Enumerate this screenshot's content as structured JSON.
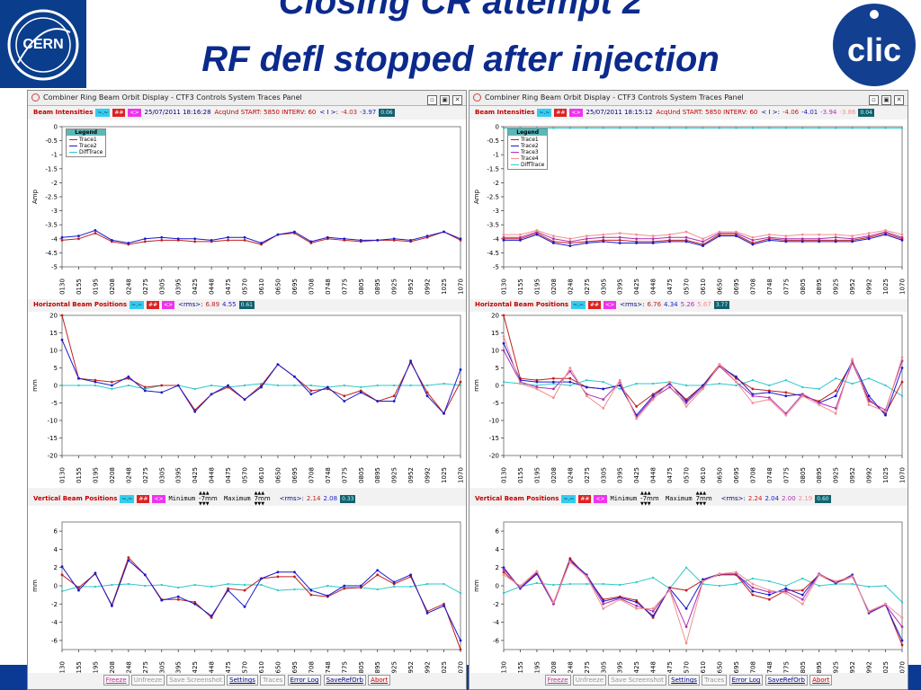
{
  "slide": {
    "title_line1": "Closing CR attempt 2",
    "title_line2": "RF defl stopped after injection",
    "logo_left_text": "CERN",
    "logo_right_text": "clic"
  },
  "window": {
    "title": "Combiner Ring Beam Orbit Display - CTF3 Controls System    Traces Panel",
    "buttons": [
      "▫",
      "▣",
      "✕"
    ]
  },
  "controls": {
    "cyan": "~.~",
    "red": "##",
    "mag": "<>",
    "up_arrows": "▲▲▲",
    "down_arrows": "▼▼▼",
    "minimum_label": "Minimum",
    "maximum_label": "Maximum",
    "unit_mm": "mm"
  },
  "footer": {
    "buttons": [
      "Freeze",
      "Unfreeze",
      "Save Screenshot",
      "Settings",
      "Traces",
      "Error Log",
      "SaveRefOrb",
      "Abort"
    ]
  },
  "colors": {
    "trace1": "#c02020",
    "trace2": "#1a1acc",
    "trace3": "#b030b0",
    "trace4": "#f09090",
    "diff": "#30c8c8",
    "title": "#0b2a8c"
  },
  "bpm_labels": [
    "0130",
    "0155",
    "0195",
    "0208",
    "0248",
    "0275",
    "0305",
    "0395",
    "0425",
    "0448",
    "0475",
    "0570",
    "0610",
    "0650",
    "0695",
    "0708",
    "0748",
    "0775",
    "0805",
    "0895",
    "0925",
    "0952",
    "0992",
    "1025",
    "1070"
  ],
  "panels": [
    {
      "id": "left",
      "intensity_header": {
        "label": "Beam Intensities",
        "date": "25/07/2011 18:16:28",
        "acq": "AcqUnd START: 5850 INTERV: 60",
        "rms_prefix": "< I >:",
        "vals": [
          "-4.03",
          "-3.97"
        ],
        "badge": "0.06"
      },
      "horizontal_header": {
        "label": "Horizontal Beam Positions",
        "rms_prefix": "<rms>:",
        "vals": [
          "6.89",
          "4.55"
        ],
        "badge": "0.61"
      },
      "vertical_header": {
        "label": "Vertical Beam Positions",
        "min": "-7",
        "max": "7",
        "rms_prefix": "<rms>:",
        "vals": [
          "2.14",
          "2.08"
        ],
        "badge": "0.33"
      },
      "legend": {
        "title": "Legend",
        "items": [
          "Trace1",
          "Trace2",
          "DiffTrace"
        ]
      }
    },
    {
      "id": "right",
      "intensity_header": {
        "label": "Beam Intensities",
        "date": "25/07/2011 18:15:12",
        "acq": "AcqUnd START: 5850 INTERV: 60",
        "rms_prefix": "< I >:",
        "vals": [
          "-4.06",
          "-4.01",
          "-3.94",
          "-3.86"
        ],
        "badge": "0.04"
      },
      "horizontal_header": {
        "label": "Horizontal Beam Positions",
        "rms_prefix": "<rms>:",
        "vals": [
          "6.76",
          "4.34",
          "5.26",
          "5.67"
        ],
        "badge": "3.77"
      },
      "vertical_header": {
        "label": "Vertical Beam Positions",
        "min": "-7",
        "max": "7",
        "rms_prefix": "<rms>:",
        "vals": [
          "2.24",
          "2.04",
          "2.00",
          "2.19"
        ],
        "badge": "0.60"
      },
      "legend": {
        "title": "Legend",
        "items": [
          "Trace1",
          "Trace2",
          "Trace3",
          "Trace4",
          "DiffTrace"
        ]
      }
    }
  ],
  "chart_data": [
    {
      "panel": "left",
      "type": "line",
      "title": "Beam Intensities",
      "ylabel": "Amp",
      "ylim": [
        -5,
        0
      ],
      "yticks": [
        "0",
        "-0.5",
        "-1",
        "-1.5",
        "-2",
        "-2.5",
        "-3",
        "-3.5",
        "-4",
        "-4.5",
        "-5"
      ],
      "ytick_values": [
        0,
        -0.5,
        -1,
        -1.5,
        -2,
        -2.5,
        -3,
        -3.5,
        -4,
        -4.5,
        -5
      ],
      "series": [
        {
          "name": "Trace1",
          "color": "#c02020",
          "values": [
            -4.05,
            -4.0,
            -3.8,
            -4.1,
            -4.2,
            -4.1,
            -4.05,
            -4.05,
            -4.1,
            -4.1,
            -4.05,
            -4.05,
            -4.2,
            -3.85,
            -3.8,
            -4.15,
            -4.0,
            -4.05,
            -4.1,
            -4.05,
            -4.05,
            -4.1,
            -3.95,
            -3.75,
            -4.05
          ]
        },
        {
          "name": "Trace2",
          "color": "#1a1acc",
          "values": [
            -3.95,
            -3.9,
            -3.7,
            -4.05,
            -4.15,
            -4.0,
            -3.95,
            -4.0,
            -4.0,
            -4.05,
            -3.95,
            -3.95,
            -4.15,
            -3.85,
            -3.75,
            -4.1,
            -3.95,
            -4.0,
            -4.05,
            -4.05,
            -4.0,
            -4.05,
            -3.9,
            -3.75,
            -4.0
          ]
        },
        {
          "name": "DiffTrace",
          "color": "#30c8c8",
          "values": []
        }
      ]
    },
    {
      "panel": "left",
      "type": "line",
      "title": "Horizontal Beam Positions",
      "ylabel": "mm",
      "ylim": [
        -20,
        20
      ],
      "yticks": [
        "20",
        "15",
        "10",
        "5",
        "0",
        "-5",
        "-10",
        "-15",
        "-20"
      ],
      "ytick_values": [
        20,
        15,
        10,
        5,
        0,
        -5,
        -10,
        -15,
        -20
      ],
      "series": [
        {
          "name": "Trace1",
          "color": "#c02020",
          "values": [
            22,
            2,
            1.5,
            1,
            2,
            -0.5,
            0,
            0,
            -7,
            -2.5,
            -0.5,
            -4,
            0,
            6,
            2.5,
            -1.5,
            -1,
            -3,
            -1.5,
            -4.5,
            -3,
            6.5,
            -2,
            -8,
            1
          ]
        },
        {
          "name": "Trace2",
          "color": "#1a1acc",
          "values": [
            13,
            2,
            1,
            0,
            2.5,
            -1.5,
            -2,
            0,
            -7.5,
            -2.5,
            0,
            -4,
            -0.5,
            6,
            2.5,
            -2.5,
            -0.5,
            -4.5,
            -2,
            -4.5,
            -4.5,
            7,
            -3,
            -8,
            4.5
          ]
        },
        {
          "name": "DiffTrace",
          "color": "#30c8c8",
          "values": [
            0,
            0,
            0,
            -1,
            0,
            -1,
            0,
            0,
            -1,
            0,
            -0.5,
            0,
            0.5,
            0,
            0,
            0,
            -0.5,
            0,
            -0.5,
            0,
            0,
            0,
            0,
            0.5,
            0
          ]
        }
      ]
    },
    {
      "panel": "left",
      "type": "line",
      "title": "Vertical Beam Positions",
      "ylabel": "mm",
      "ylim": [
        -7,
        7
      ],
      "yticks": [
        "6",
        "4",
        "2",
        "0",
        "-2",
        "-4",
        "-6"
      ],
      "ytick_values": [
        6,
        4,
        2,
        0,
        -2,
        -4,
        -6
      ],
      "series": [
        {
          "name": "Trace1",
          "color": "#c02020",
          "values": [
            1.2,
            -0.2,
            1.3,
            -2.1,
            3.1,
            1.2,
            -1.5,
            -1.5,
            -1.8,
            -3.5,
            -0.3,
            -0.5,
            0.8,
            1.0,
            1.0,
            -1.0,
            -1.2,
            -0.3,
            -0.2,
            1.2,
            0.2,
            1.0,
            -2.8,
            -2.0,
            -7.0
          ]
        },
        {
          "name": "Trace2",
          "color": "#1a1acc",
          "values": [
            2.1,
            -0.5,
            1.4,
            -2.2,
            2.8,
            1.2,
            -1.6,
            -1.2,
            -2.0,
            -3.3,
            -0.5,
            -2.3,
            0.8,
            1.5,
            1.5,
            -0.5,
            -1.1,
            0.0,
            0.0,
            1.7,
            0.4,
            1.2,
            -3.0,
            -2.2,
            -6.0
          ]
        },
        {
          "name": "DiffTrace",
          "color": "#30c8c8",
          "values": [
            -0.6,
            -0.1,
            -0.1,
            0.1,
            0.2,
            0.0,
            0.1,
            -0.2,
            0.1,
            -0.1,
            0.2,
            0.1,
            0.1,
            -0.5,
            -0.4,
            -0.4,
            0.0,
            -0.2,
            -0.2,
            -0.4,
            -0.1,
            -0.1,
            0.2,
            0.2,
            -0.8
          ]
        }
      ]
    },
    {
      "panel": "right",
      "type": "line",
      "title": "Beam Intensities",
      "ylabel": "Amp",
      "ylim": [
        -5,
        0
      ],
      "yticks": [
        "0",
        "-0.5",
        "-1",
        "-1.5",
        "-2",
        "-2.5",
        "-3",
        "-3.5",
        "-4",
        "-4.5",
        "-5"
      ],
      "ytick_values": [
        0,
        -0.5,
        -1,
        -1.5,
        -2,
        -2.5,
        -3,
        -3.5,
        -4,
        -4.5,
        -5
      ],
      "series": [
        {
          "name": "Trace1",
          "color": "#c02020",
          "values": [
            -4.0,
            -4.0,
            -3.8,
            -4.1,
            -4.15,
            -4.1,
            -4.05,
            -4.05,
            -4.1,
            -4.1,
            -4.05,
            -4.05,
            -4.2,
            -3.85,
            -3.85,
            -4.15,
            -4.0,
            -4.05,
            -4.05,
            -4.05,
            -4.05,
            -4.05,
            -3.95,
            -3.8,
            -4.0
          ]
        },
        {
          "name": "Trace2",
          "color": "#1a1acc",
          "values": [
            -4.05,
            -4.05,
            -3.85,
            -4.15,
            -4.25,
            -4.15,
            -4.1,
            -4.15,
            -4.15,
            -4.15,
            -4.1,
            -4.1,
            -4.25,
            -3.9,
            -3.9,
            -4.2,
            -4.05,
            -4.1,
            -4.1,
            -4.1,
            -4.1,
            -4.1,
            -4.0,
            -3.85,
            -4.05
          ]
        },
        {
          "name": "Trace3",
          "color": "#b030b0",
          "values": [
            -3.95,
            -3.95,
            -3.75,
            -4.0,
            -4.1,
            -4.0,
            -3.95,
            -3.95,
            -4.0,
            -4.0,
            -3.95,
            -3.95,
            -4.1,
            -3.8,
            -3.8,
            -4.05,
            -3.95,
            -4.0,
            -4.0,
            -4.0,
            -3.95,
            -4.0,
            -3.9,
            -3.75,
            -3.95
          ]
        },
        {
          "name": "Trace4",
          "color": "#f09090",
          "values": [
            -3.85,
            -3.85,
            -3.7,
            -3.9,
            -4.0,
            -3.9,
            -3.85,
            -3.8,
            -3.85,
            -3.9,
            -3.85,
            -3.75,
            -4.0,
            -3.75,
            -3.75,
            -3.95,
            -3.85,
            -3.9,
            -3.85,
            -3.85,
            -3.85,
            -3.9,
            -3.8,
            -3.7,
            -3.85
          ]
        },
        {
          "name": "DiffTrace",
          "color": "#30c8c8",
          "values": [
            -0.05,
            -0.05,
            -0.05,
            -0.05,
            -0.05,
            -0.05,
            -0.05,
            -0.05,
            -0.05,
            -0.05,
            -0.05,
            -0.05,
            -0.05,
            -0.05,
            -0.05,
            -0.05,
            -0.05,
            -0.05,
            -0.05,
            -0.05,
            -0.05,
            -0.05,
            -0.05,
            -0.05,
            -0.05
          ]
        }
      ]
    },
    {
      "panel": "right",
      "type": "line",
      "title": "Horizontal Beam Positions",
      "ylabel": "mm",
      "ylim": [
        -20,
        20
      ],
      "yticks": [
        "20",
        "15",
        "10",
        "5",
        "0",
        "-5",
        "-10",
        "-15",
        "-20"
      ],
      "ytick_values": [
        20,
        15,
        10,
        5,
        0,
        -5,
        -10,
        -15,
        -20
      ],
      "series": [
        {
          "name": "Trace1",
          "color": "#c02020",
          "values": [
            22,
            2,
            1.5,
            2,
            2,
            -0.5,
            -1,
            0,
            -6,
            -2.5,
            0.5,
            -4,
            0,
            6,
            2,
            -1,
            -1.5,
            -2,
            -3,
            -4.5,
            -1.5,
            6.5,
            -4,
            -8,
            1
          ]
        },
        {
          "name": "Trace2",
          "color": "#1a1acc",
          "values": [
            12,
            1.5,
            1,
            1,
            1,
            -0.5,
            -1,
            0,
            -8.5,
            -3,
            0.5,
            -4.5,
            0,
            5.5,
            2.5,
            -2.5,
            -2,
            -3,
            -2.5,
            -5,
            -3,
            7,
            -3,
            -8.5,
            5
          ]
        },
        {
          "name": "Trace3",
          "color": "#b030b0",
          "values": [
            10,
            1,
            -0.5,
            -1,
            4,
            -2.5,
            -4,
            1,
            -9,
            -3.5,
            -0.5,
            -5,
            -0.5,
            5.5,
            1,
            -3,
            -3.5,
            -8,
            -2.5,
            -5,
            -6.5,
            6.5,
            -4.5,
            -7,
            7
          ]
        },
        {
          "name": "Trace4",
          "color": "#f09090",
          "values": [
            14,
            0.5,
            -1,
            -3.5,
            5,
            -3,
            -6.5,
            1.5,
            -9.5,
            -4,
            1,
            -6,
            -1,
            6,
            1,
            -5,
            -4,
            -8.5,
            -3,
            -5.5,
            -8,
            7.5,
            -5.5,
            -7.5,
            8
          ]
        },
        {
          "name": "DiffTrace",
          "color": "#30c8c8",
          "values": [
            1,
            0.5,
            0,
            0.5,
            0,
            1.5,
            1,
            -1,
            0.5,
            0.5,
            1,
            0,
            0,
            0.5,
            0,
            1.5,
            0,
            1.5,
            -0.5,
            -1,
            2,
            0.5,
            2,
            0,
            -3
          ]
        }
      ]
    },
    {
      "panel": "right",
      "type": "line",
      "title": "Vertical Beam Positions",
      "ylabel": "mm",
      "ylim": [
        -7,
        7
      ],
      "yticks": [
        "6",
        "4",
        "2",
        "0",
        "-2",
        "-4",
        "-6"
      ],
      "ytick_values": [
        6,
        4,
        2,
        0,
        -2,
        -4,
        -6
      ],
      "series": [
        {
          "name": "Trace1",
          "color": "#c02020",
          "values": [
            1.5,
            -0.2,
            1.4,
            -1.9,
            3.0,
            1.0,
            -1.5,
            -1.2,
            -1.6,
            -3.5,
            -0.2,
            -0.5,
            0.6,
            1.2,
            1.2,
            -1.0,
            -1.5,
            -0.5,
            -0.5,
            1.2,
            0.3,
            1.0,
            -2.8,
            -2.0,
            -6.5
          ]
        },
        {
          "name": "Trace2",
          "color": "#1a1acc",
          "values": [
            2.0,
            -0.3,
            1.3,
            -2.0,
            2.8,
            1.2,
            -1.7,
            -1.3,
            -1.8,
            -3.3,
            -0.3,
            -2.5,
            0.7,
            1.3,
            1.3,
            -0.6,
            -1.0,
            -0.3,
            -1.0,
            1.3,
            0.3,
            1.2,
            -3.0,
            -2.1,
            -6.0
          ]
        },
        {
          "name": "Trace3",
          "color": "#b030b0",
          "values": [
            1.8,
            -0.2,
            1.5,
            -2.0,
            2.7,
            1.1,
            -2.0,
            -1.4,
            -2.2,
            -2.8,
            -0.4,
            -4.5,
            0.5,
            1.3,
            1.3,
            -0.2,
            -0.7,
            -0.6,
            -1.5,
            1.3,
            0.4,
            1.1,
            -2.9,
            -2.1,
            -4.5
          ]
        },
        {
          "name": "Trace4",
          "color": "#f09090",
          "values": [
            1.2,
            0.0,
            1.6,
            -1.8,
            2.6,
            1.0,
            -2.5,
            -1.5,
            -2.5,
            -2.5,
            -0.5,
            -6.3,
            0.5,
            1.3,
            1.5,
            0.2,
            -0.5,
            -0.8,
            -2.0,
            1.2,
            0.5,
            1.0,
            -2.8,
            -2.0,
            -3.5
          ]
        },
        {
          "name": "DiffTrace",
          "color": "#30c8c8",
          "values": [
            -0.8,
            -0.1,
            0.3,
            0.1,
            0.2,
            0.2,
            0.2,
            0.1,
            0.4,
            0.9,
            -0.3,
            2.0,
            0.2,
            0.0,
            0.2,
            0.8,
            0.5,
            0.0,
            0.8,
            0.0,
            0.2,
            0.2,
            -0.1,
            0.0,
            -1.8
          ]
        }
      ]
    }
  ]
}
